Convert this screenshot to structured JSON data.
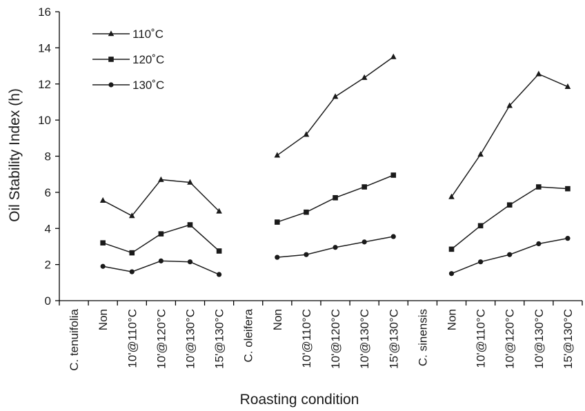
{
  "chart_data": {
    "type": "line",
    "title": "",
    "xlabel": "Roasting condition",
    "ylabel": "Oil Stability Index (h)",
    "ylim": [
      0,
      16
    ],
    "yticks": [
      "0",
      "2",
      "4",
      "6",
      "8",
      "10",
      "12",
      "14",
      "16"
    ],
    "grid": false,
    "legend_position": "top-left",
    "categories": [
      "C. tenuifolia",
      "Non",
      "10'@110°C",
      "10'@120°C",
      "10'@130°C",
      "15'@130°C",
      "C. oleifera",
      "Non",
      "10'@110°C",
      "10'@120°C",
      "10'@130°C",
      "15'@130°C",
      "C. sinensis",
      "Non",
      "10'@110°C",
      "10'@120°C",
      "10'@130°C",
      "15'@130°C"
    ],
    "series": [
      {
        "name": "110˚C",
        "marker": "triangle",
        "values": [
          null,
          5.55,
          4.7,
          6.7,
          6.55,
          4.95,
          null,
          8.05,
          9.2,
          11.3,
          12.35,
          13.5,
          null,
          5.75,
          8.1,
          10.8,
          12.55,
          11.85
        ]
      },
      {
        "name": "120˚C",
        "marker": "square",
        "values": [
          null,
          3.2,
          2.65,
          3.7,
          4.2,
          2.75,
          null,
          4.35,
          4.9,
          5.7,
          6.3,
          6.95,
          null,
          2.85,
          4.15,
          5.3,
          6.3,
          6.2
        ]
      },
      {
        "name": "130˚C",
        "marker": "circle",
        "values": [
          null,
          1.9,
          1.6,
          2.2,
          2.15,
          1.45,
          null,
          2.4,
          2.55,
          2.95,
          3.25,
          3.55,
          null,
          1.5,
          2.15,
          2.55,
          3.15,
          3.45
        ]
      }
    ],
    "colors": {
      "line": "#1a1a1a",
      "axis": "#000000"
    }
  }
}
